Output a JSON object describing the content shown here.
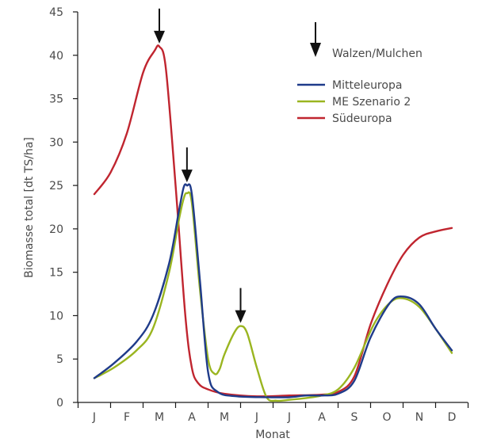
{
  "chart_data": {
    "type": "line",
    "xlabel": "Monat",
    "ylabel": "Biomasse total [dt TS/ha]",
    "categories": [
      "J",
      "F",
      "M",
      "A",
      "M",
      "J",
      "J",
      "A",
      "S",
      "O",
      "N",
      "D"
    ],
    "ylim": [
      0,
      45
    ],
    "yticks": [
      0,
      5,
      10,
      15,
      20,
      25,
      30,
      35,
      40,
      45
    ],
    "grid": false,
    "legend_position": "top-right",
    "marker_legend_label": "Walzen/Mulchen",
    "marker_months": [
      3,
      4,
      6
    ],
    "series": [
      {
        "name": "Mitteleuropa",
        "color": "#1f3b8a",
        "points": [
          [
            1,
            2.8
          ],
          [
            1.6,
            4.5
          ],
          [
            2.3,
            7.0
          ],
          [
            2.8,
            10.0
          ],
          [
            3.3,
            16.0
          ],
          [
            3.6,
            22.0
          ],
          [
            3.75,
            24.8
          ],
          [
            3.85,
            25.0
          ],
          [
            4.0,
            24.0
          ],
          [
            4.25,
            14.0
          ],
          [
            4.5,
            3.5
          ],
          [
            4.8,
            1.2
          ],
          [
            5.4,
            0.7
          ],
          [
            6.3,
            0.6
          ],
          [
            7.0,
            0.6
          ],
          [
            7.5,
            0.8
          ],
          [
            8.0,
            0.8
          ],
          [
            8.5,
            1.0
          ],
          [
            9.0,
            2.5
          ],
          [
            9.5,
            7.5
          ],
          [
            10.1,
            11.5
          ],
          [
            10.5,
            12.2
          ],
          [
            11.0,
            11.3
          ],
          [
            11.5,
            8.5
          ],
          [
            12.0,
            6.0
          ]
        ]
      },
      {
        "name": "ME Szenario 2",
        "color": "#9ab520",
        "points": [
          [
            1,
            2.8
          ],
          [
            1.6,
            4.0
          ],
          [
            2.3,
            6.0
          ],
          [
            2.8,
            8.5
          ],
          [
            3.3,
            15.0
          ],
          [
            3.6,
            21.0
          ],
          [
            3.75,
            23.5
          ],
          [
            3.85,
            24.1
          ],
          [
            4.0,
            23.0
          ],
          [
            4.25,
            13.0
          ],
          [
            4.5,
            5.0
          ],
          [
            4.7,
            3.3
          ],
          [
            4.85,
            3.8
          ],
          [
            5.0,
            5.5
          ],
          [
            5.3,
            8.0
          ],
          [
            5.5,
            8.8
          ],
          [
            5.7,
            8.0
          ],
          [
            6.0,
            4.0
          ],
          [
            6.3,
            0.6
          ],
          [
            6.6,
            0.2
          ],
          [
            7.0,
            0.3
          ],
          [
            7.5,
            0.5
          ],
          [
            8.0,
            0.8
          ],
          [
            8.5,
            1.5
          ],
          [
            9.0,
            4.0
          ],
          [
            9.6,
            9.0
          ],
          [
            10.1,
            11.5
          ],
          [
            10.5,
            12.0
          ],
          [
            11.0,
            11.0
          ],
          [
            11.5,
            8.5
          ],
          [
            12.0,
            5.7
          ]
        ]
      },
      {
        "name": "Südeuropa",
        "color": "#c0252f",
        "points": [
          [
            1,
            24.0
          ],
          [
            1.5,
            26.5
          ],
          [
            2.0,
            31.0
          ],
          [
            2.5,
            38.0
          ],
          [
            2.85,
            40.5
          ],
          [
            3.0,
            41.0
          ],
          [
            3.2,
            38.5
          ],
          [
            3.5,
            25.0
          ],
          [
            3.8,
            10.0
          ],
          [
            4.0,
            4.0
          ],
          [
            4.2,
            2.2
          ],
          [
            4.5,
            1.5
          ],
          [
            5.0,
            1.0
          ],
          [
            6.0,
            0.7
          ],
          [
            7.0,
            0.8
          ],
          [
            8.0,
            0.9
          ],
          [
            8.5,
            1.2
          ],
          [
            9.0,
            3.0
          ],
          [
            9.5,
            9.0
          ],
          [
            10.0,
            13.5
          ],
          [
            10.5,
            17.0
          ],
          [
            11.0,
            19.0
          ],
          [
            11.5,
            19.7
          ],
          [
            12.0,
            20.1
          ]
        ]
      }
    ]
  }
}
